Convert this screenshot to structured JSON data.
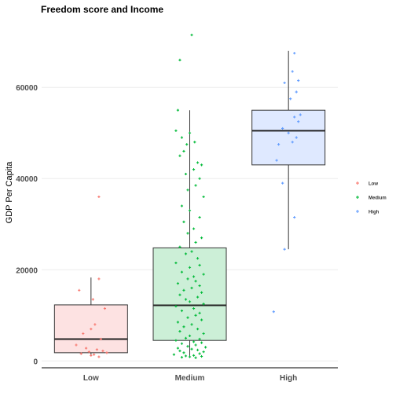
{
  "chart_data": {
    "type": "boxplot",
    "title": "Freedom score and Income",
    "xlabel": "",
    "ylabel": "GDP Per Capita",
    "categories": [
      "Low",
      "Medium",
      "High"
    ],
    "ylim": [
      -1500,
      74000
    ],
    "yticks": [
      0,
      20000,
      40000,
      60000
    ],
    "ytick_labels": [
      "0",
      "20000",
      "40000",
      "60000"
    ],
    "grid": true,
    "legend": {
      "position": "right",
      "entries": [
        "Low",
        "Medium",
        "High"
      ]
    },
    "colors": {
      "Low": {
        "point": "#F8766D",
        "fill": "#FDE2E2"
      },
      "Medium": {
        "point": "#00BA38",
        "fill": "#CCEFD7"
      },
      "High": {
        "point": "#619CFF",
        "fill": "#DFE9FF"
      }
    },
    "boxes": [
      {
        "category": "Low",
        "whisker_low": 1100,
        "q1": 1800,
        "median": 4800,
        "q3": 12300,
        "whisker_high": 18300
      },
      {
        "category": "Medium",
        "whisker_low": 700,
        "q1": 4500,
        "median": 12200,
        "q3": 24800,
        "whisker_high": 55000
      },
      {
        "category": "High",
        "whisker_low": 24500,
        "q1": 43000,
        "median": 50500,
        "q3": 55000,
        "whisker_high": 68000
      }
    ],
    "points": {
      "Low": [
        [
          0.08,
          36000
        ],
        [
          0.08,
          18000
        ],
        [
          -0.12,
          15500
        ],
        [
          0.02,
          13500
        ],
        [
          0.14,
          11500
        ],
        [
          0.04,
          8000
        ],
        [
          0.0,
          7000
        ],
        [
          -0.08,
          6000
        ],
        [
          0.1,
          4800
        ],
        [
          -0.15,
          3500
        ],
        [
          -0.05,
          2800
        ],
        [
          0.06,
          2500
        ],
        [
          0.12,
          2200
        ],
        [
          0.16,
          1800
        ],
        [
          -0.1,
          1600
        ],
        [
          0.0,
          1200
        ],
        [
          0.08,
          900
        ],
        [
          -0.02,
          2000
        ],
        [
          0.03,
          1400
        ]
      ],
      "Medium": [
        [
          0.02,
          71500
        ],
        [
          -0.1,
          66000
        ],
        [
          -0.12,
          55000
        ],
        [
          -0.14,
          50500
        ],
        [
          0.0,
          50000
        ],
        [
          -0.08,
          49000
        ],
        [
          0.05,
          48000
        ],
        [
          -0.03,
          47500
        ],
        [
          -0.06,
          46000
        ],
        [
          -0.1,
          45000
        ],
        [
          0.08,
          43500
        ],
        [
          0.12,
          43000
        ],
        [
          0.04,
          42000
        ],
        [
          -0.04,
          41000
        ],
        [
          0.1,
          40000
        ],
        [
          0.06,
          38500
        ],
        [
          -0.02,
          37500
        ],
        [
          0.14,
          36000
        ],
        [
          -0.08,
          34000
        ],
        [
          0.0,
          33000
        ],
        [
          0.1,
          31500
        ],
        [
          -0.06,
          30500
        ],
        [
          0.04,
          29000
        ],
        [
          -0.02,
          28000
        ],
        [
          0.12,
          27000
        ],
        [
          0.06,
          26000
        ],
        [
          -0.1,
          25000
        ],
        [
          0.02,
          24000
        ],
        [
          -0.04,
          23500
        ],
        [
          0.08,
          22500
        ],
        [
          -0.14,
          21500
        ],
        [
          0.1,
          21000
        ],
        [
          0.0,
          20500
        ],
        [
          -0.08,
          19500
        ],
        [
          0.14,
          19000
        ],
        [
          0.04,
          18500
        ],
        [
          -0.02,
          18000
        ],
        [
          0.06,
          17500
        ],
        [
          -0.12,
          17000
        ],
        [
          0.1,
          16500
        ],
        [
          0.02,
          16000
        ],
        [
          -0.06,
          15500
        ],
        [
          0.12,
          15000
        ],
        [
          -0.1,
          14500
        ],
        [
          0.08,
          14000
        ],
        [
          -0.04,
          13500
        ],
        [
          0.0,
          13000
        ],
        [
          0.14,
          12500
        ],
        [
          -0.14,
          12000
        ],
        [
          0.04,
          11500
        ],
        [
          -0.08,
          11000
        ],
        [
          0.1,
          10500
        ],
        [
          0.06,
          10000
        ],
        [
          -0.02,
          9500
        ],
        [
          0.12,
          9000
        ],
        [
          -0.12,
          8500
        ],
        [
          0.02,
          8000
        ],
        [
          -0.06,
          7500
        ],
        [
          0.08,
          7000
        ],
        [
          -0.1,
          6500
        ],
        [
          0.14,
          6000
        ],
        [
          0.0,
          5500
        ],
        [
          -0.04,
          5000
        ],
        [
          0.1,
          4800
        ],
        [
          -0.14,
          4500
        ],
        [
          0.04,
          4200
        ],
        [
          0.12,
          4000
        ],
        [
          -0.08,
          3800
        ],
        [
          0.06,
          3500
        ],
        [
          -0.02,
          3200
        ],
        [
          0.16,
          3000
        ],
        [
          -0.12,
          2800
        ],
        [
          0.02,
          2600
        ],
        [
          0.08,
          2400
        ],
        [
          -0.1,
          2200
        ],
        [
          0.14,
          2000
        ],
        [
          -0.06,
          1800
        ],
        [
          0.1,
          1600
        ],
        [
          -0.16,
          1400
        ],
        [
          0.04,
          1200
        ],
        [
          -0.04,
          1100
        ],
        [
          0.12,
          1000
        ],
        [
          0.0,
          900
        ],
        [
          -0.08,
          800
        ],
        [
          0.06,
          700
        ]
      ],
      "High": [
        [
          0.06,
          67500
        ],
        [
          0.04,
          63500
        ],
        [
          0.1,
          61500
        ],
        [
          -0.04,
          61000
        ],
        [
          0.08,
          59000
        ],
        [
          0.02,
          57500
        ],
        [
          0.12,
          54000
        ],
        [
          0.06,
          53500
        ],
        [
          0.1,
          52500
        ],
        [
          -0.06,
          51000
        ],
        [
          0.0,
          50000
        ],
        [
          0.08,
          49000
        ],
        [
          -0.1,
          47500
        ],
        [
          0.04,
          48000
        ],
        [
          -0.12,
          44000
        ],
        [
          -0.06,
          39000
        ],
        [
          0.06,
          31500
        ],
        [
          -0.04,
          24500
        ],
        [
          -0.15,
          10800
        ]
      ]
    }
  }
}
